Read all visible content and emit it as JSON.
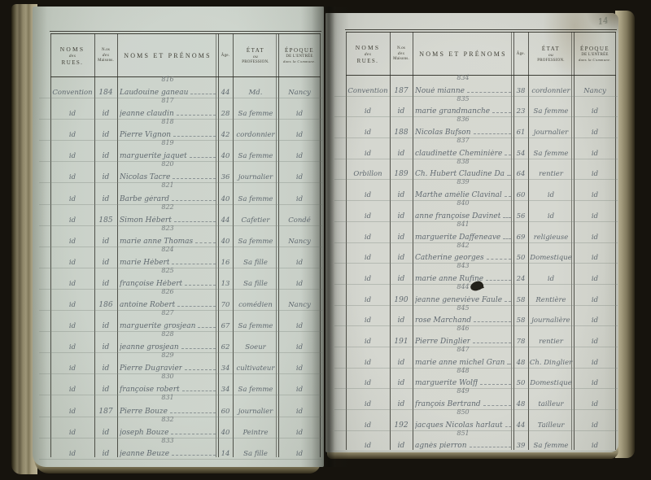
{
  "page_number": "14",
  "header": {
    "col_streets": [
      "NOMS",
      "des",
      "RUES."
    ],
    "col_house": [
      "N.os",
      "des",
      "Maisons."
    ],
    "col_names": "NOMS ET PRÉNOMS",
    "col_age": "Âge.",
    "col_state": [
      "ÉTAT",
      "ou",
      "PROFESSION."
    ],
    "col_epoch": [
      "ÉPOQUE",
      "DE L'ENTRÉE",
      "dans la Commune."
    ]
  },
  "left_page": {
    "entries": [
      {
        "num": "816",
        "street": "Convention",
        "house": "184",
        "name": "Laudouine ganeau",
        "age": "44",
        "prof": "Md.",
        "epoch": "Nancy"
      },
      {
        "num": "817",
        "street": "id",
        "house": "id",
        "name": "jeanne claudin",
        "age": "28",
        "prof": "Sa femme",
        "epoch": "id"
      },
      {
        "num": "818",
        "street": "id",
        "house": "id",
        "name": "Pierre Vignon",
        "age": "42",
        "prof": "cordonnier",
        "epoch": "id"
      },
      {
        "num": "819",
        "street": "id",
        "house": "id",
        "name": "marguerite jaquet",
        "age": "40",
        "prof": "Sa femme",
        "epoch": "id"
      },
      {
        "num": "820",
        "street": "id",
        "house": "id",
        "name": "Nicolas Tacre",
        "age": "36",
        "prof": "journalier",
        "epoch": "id"
      },
      {
        "num": "821",
        "street": "id",
        "house": "id",
        "name": "Barbe gérard",
        "age": "40",
        "prof": "Sa femme",
        "epoch": "id"
      },
      {
        "num": "822",
        "street": "id",
        "house": "185",
        "name": "Simon Hébert",
        "age": "44",
        "prof": "Cafetier",
        "epoch": "Condé"
      },
      {
        "num": "823",
        "street": "id",
        "house": "id",
        "name": "marie anne Thomas",
        "age": "40",
        "prof": "Sa femme",
        "epoch": "Nancy"
      },
      {
        "num": "824",
        "street": "id",
        "house": "id",
        "name": "marie Hébert",
        "age": "16",
        "prof": "Sa fille",
        "epoch": "id"
      },
      {
        "num": "825",
        "street": "id",
        "house": "id",
        "name": "françoise Hébert",
        "age": "13",
        "prof": "Sa fille",
        "epoch": "id"
      },
      {
        "num": "826",
        "street": "id",
        "house": "186",
        "name": "antoine Robert",
        "age": "70",
        "prof": "comédien",
        "epoch": "Nancy"
      },
      {
        "num": "827",
        "street": "id",
        "house": "id",
        "name": "marguerite grosjean",
        "age": "67",
        "prof": "Sa femme",
        "epoch": "id"
      },
      {
        "num": "828",
        "street": "id",
        "house": "id",
        "name": "jeanne grosjean",
        "age": "62",
        "prof": "Soeur",
        "epoch": "id"
      },
      {
        "num": "829",
        "street": "id",
        "house": "id",
        "name": "Pierre Dugravier",
        "age": "34",
        "prof": "cultivateur",
        "epoch": "id"
      },
      {
        "num": "830",
        "street": "id",
        "house": "id",
        "name": "françoise robert",
        "age": "34",
        "prof": "Sa femme",
        "epoch": "id"
      },
      {
        "num": "831",
        "street": "id",
        "house": "187",
        "name": "Pierre Bouze",
        "age": "60",
        "prof": "journalier",
        "epoch": "id"
      },
      {
        "num": "832",
        "street": "id",
        "house": "id",
        "name": "joseph Bouze",
        "age": "40",
        "prof": "Peintre",
        "epoch": "id"
      },
      {
        "num": "833",
        "street": "id",
        "house": "id",
        "name": "jeanne Beuze",
        "age": "14",
        "prof": "Sa fille",
        "epoch": "id"
      }
    ]
  },
  "right_page": {
    "entries": [
      {
        "num": "834",
        "street": "Convention",
        "house": "187",
        "name": "Noué mianne",
        "age": "38",
        "prof": "cordonnier",
        "epoch": "Nancy"
      },
      {
        "num": "835",
        "street": "id",
        "house": "id",
        "name": "marie grandmanche",
        "age": "23",
        "prof": "Sa femme",
        "epoch": "id"
      },
      {
        "num": "836",
        "street": "id",
        "house": "188",
        "name": "Nicolas Bufson",
        "age": "61",
        "prof": "journalier",
        "epoch": "id"
      },
      {
        "num": "837",
        "street": "id",
        "house": "id",
        "name": "claudinette Cheminière",
        "age": "54",
        "prof": "Sa femme",
        "epoch": "id"
      },
      {
        "num": "838",
        "street": "Orbillon",
        "house": "189",
        "name": "Ch. Hubert Claudine Davinet",
        "age": "64",
        "prof": "rentier",
        "epoch": "id"
      },
      {
        "num": "839",
        "street": "id",
        "house": "id",
        "name": "Marthe amélie Clavinal",
        "age": "60",
        "prof": "id",
        "epoch": "id"
      },
      {
        "num": "840",
        "street": "id",
        "house": "id",
        "name": "anne françoise Davinet",
        "age": "56",
        "prof": "id",
        "epoch": "id"
      },
      {
        "num": "841",
        "street": "id",
        "house": "id",
        "name": "marguerite Daffeneave",
        "age": "69",
        "prof": "religieuse",
        "epoch": "id"
      },
      {
        "num": "842",
        "street": "id",
        "house": "id",
        "name": "Catherine georges",
        "age": "50",
        "prof": "Domestique",
        "epoch": "id"
      },
      {
        "num": "843",
        "street": "id",
        "house": "id",
        "name": "marie anne Rufine",
        "age": "24",
        "prof": "id",
        "epoch": "id"
      },
      {
        "num": "844",
        "street": "id",
        "house": "190",
        "name": "jeanne geneviève Faule",
        "age": "58",
        "prof": "Rentière",
        "epoch": "id"
      },
      {
        "num": "845",
        "street": "id",
        "house": "id",
        "name": "rose Marchand",
        "age": "58",
        "prof": "journalière",
        "epoch": "id"
      },
      {
        "num": "846",
        "street": "id",
        "house": "191",
        "name": "Pierre Dinglier",
        "age": "78",
        "prof": "rentier",
        "epoch": "id"
      },
      {
        "num": "847",
        "street": "id",
        "house": "id",
        "name": "marie anne michel Grand",
        "age": "48",
        "prof": "Ch. Dinglier",
        "epoch": "id"
      },
      {
        "num": "848",
        "street": "id",
        "house": "id",
        "name": "marguerite Wolff",
        "age": "50",
        "prof": "Domestique",
        "epoch": "id"
      },
      {
        "num": "849",
        "street": "id",
        "house": "id",
        "name": "françois Bertrand",
        "age": "48",
        "prof": "tailleur",
        "epoch": "id"
      },
      {
        "num": "850",
        "street": "id",
        "house": "192",
        "name": "jacques Nicolas harlaut",
        "age": "44",
        "prof": "Tailleur",
        "epoch": "id"
      },
      {
        "num": "851",
        "street": "id",
        "house": "id",
        "name": "agnès pierron",
        "age": "39",
        "prof": "Sa femme",
        "epoch": "id"
      }
    ]
  }
}
